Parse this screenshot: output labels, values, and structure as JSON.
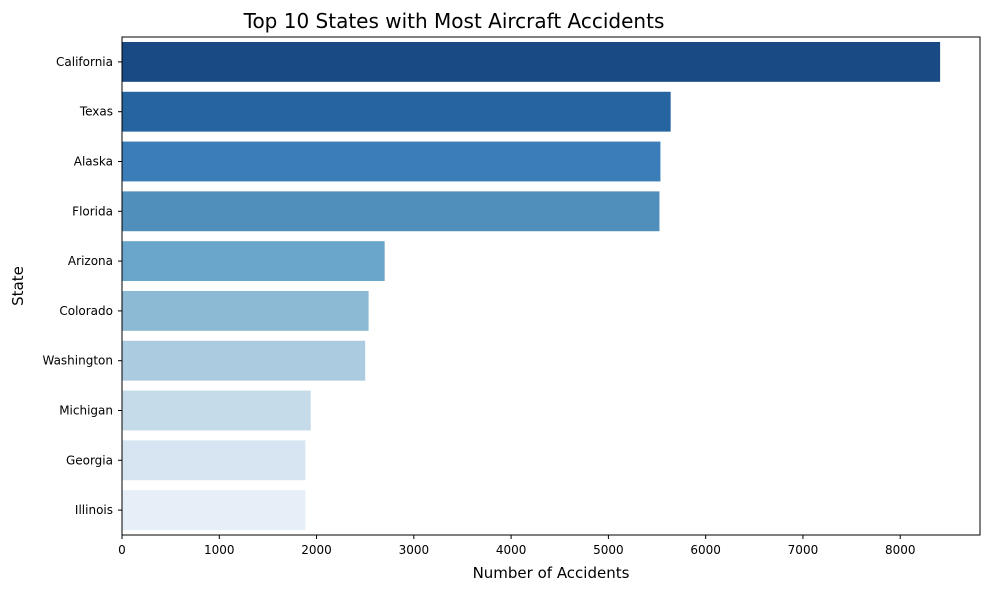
{
  "chart_data": {
    "type": "bar",
    "orientation": "horizontal",
    "title": "Top 10 States with Most Aircraft Accidents",
    "xlabel": "Number of Accidents",
    "ylabel": "State",
    "categories": [
      "California",
      "Texas",
      "Alaska",
      "Florida",
      "Arizona",
      "Colorado",
      "Washington",
      "Michigan",
      "Georgia",
      "Illinois"
    ],
    "values": [
      8410,
      5640,
      5535,
      5525,
      2700,
      2535,
      2500,
      1940,
      1885,
      1885
    ],
    "xlim": [
      0,
      8820
    ],
    "xticks": [
      0,
      1000,
      2000,
      3000,
      4000,
      5000,
      6000,
      7000,
      8000
    ],
    "grid": false,
    "legend": "none",
    "colors": [
      "#1a4a84",
      "#25649f",
      "#3a7db7",
      "#508ebb",
      "#6aa5cb",
      "#8cb9d3",
      "#aacbe0",
      "#c6dbea",
      "#d7e4f1",
      "#e6eff8"
    ]
  }
}
